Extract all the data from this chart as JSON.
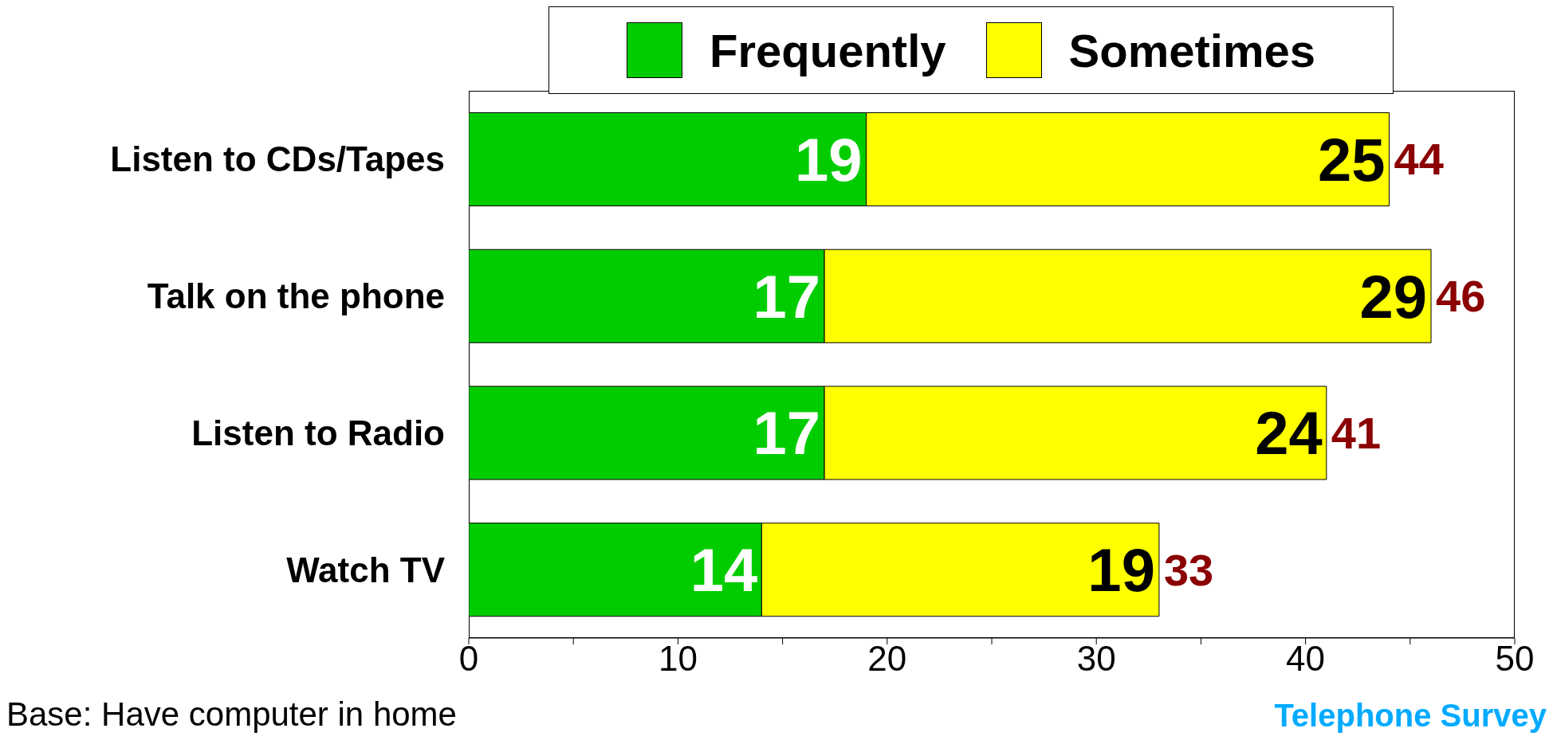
{
  "chart_data": {
    "type": "bar",
    "orientation": "horizontal",
    "stacked": true,
    "categories": [
      "Listen to CDs/Tapes",
      "Talk on the phone",
      "Listen to Radio",
      "Watch TV"
    ],
    "series": [
      {
        "name": "Frequently",
        "color": "#00cc00",
        "values": [
          19,
          17,
          17,
          14
        ]
      },
      {
        "name": "Sometimes",
        "color": "#ffff00",
        "values": [
          25,
          29,
          24,
          19
        ]
      }
    ],
    "data_labels": true,
    "totals": [
      "44",
      "46",
      "41",
      "33"
    ],
    "xlim": [
      0,
      50
    ],
    "xticks": [
      0,
      {
        "value": 5,
        "label": null
      },
      10,
      {
        "value": 15,
        "label": null
      },
      20,
      {
        "value": 25,
        "label": null
      },
      30,
      {
        "value": 35,
        "label": null
      },
      40,
      {
        "value": 45,
        "label": null
      },
      50
    ],
    "legend": "top",
    "annotations": [
      "Base: Have computer in home",
      "Telephone Survey"
    ]
  }
}
